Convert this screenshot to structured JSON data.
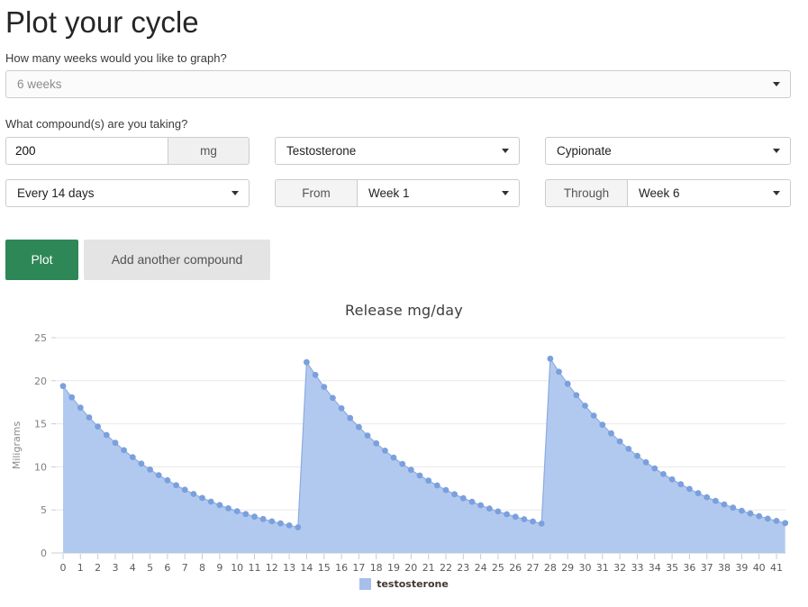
{
  "page": {
    "title": "Plot your cycle"
  },
  "form": {
    "weeks_label": "How many weeks would you like to graph?",
    "weeks_value": "6 weeks",
    "compound_label": "What compound(s) are you taking?",
    "dose_value": "200",
    "dose_unit": "mg",
    "compound_value": "Testosterone",
    "ester_value": "Cypionate",
    "frequency_value": "Every 14 days",
    "from_label": "From",
    "from_value": "Week 1",
    "through_label": "Through",
    "through_value": "Week 6",
    "plot_button": "Plot",
    "add_compound_button": "Add another compound"
  },
  "colors": {
    "plot_button_green": "#2e8756",
    "series_fill_blue": "#abc4ee",
    "series_marker_blue": "#7aa0dd"
  },
  "chart_data": {
    "type": "area",
    "title": "Release mg/day",
    "xlabel": "",
    "ylabel": "Miligrams",
    "legend_label": "testosterone",
    "legend_color": "#a6c0ea",
    "legend_position": "bottom",
    "grid": true,
    "xlim": [
      0,
      41.5
    ],
    "ylim": [
      0,
      25
    ],
    "y_ticks": [
      0,
      5,
      10,
      15,
      20,
      25
    ],
    "x_ticks": [
      0,
      1,
      2,
      3,
      4,
      5,
      6,
      7,
      8,
      9,
      10,
      11,
      12,
      13,
      14,
      15,
      16,
      17,
      18,
      19,
      20,
      21,
      22,
      23,
      24,
      25,
      26,
      27,
      28,
      29,
      30,
      31,
      32,
      33,
      34,
      35,
      36,
      37,
      38,
      39,
      40,
      41
    ],
    "series": [
      {
        "name": "testosterone",
        "fill_color": "#abc4ee",
        "line_color": "#8cabe0",
        "marker_color": "#7aa0dd",
        "x": [
          0,
          0.5,
          1,
          1.5,
          2,
          2.5,
          3,
          3.5,
          4,
          4.5,
          5,
          5.5,
          6,
          6.5,
          7,
          7.5,
          8,
          8.5,
          9,
          9.5,
          10,
          10.5,
          11,
          11.5,
          12,
          12.5,
          13,
          13.5,
          14,
          14.5,
          15,
          15.5,
          16,
          16.5,
          17,
          17.5,
          18,
          18.5,
          19,
          19.5,
          20,
          20.5,
          21,
          21.5,
          22,
          22.5,
          23,
          23.5,
          24,
          24.5,
          25,
          25.5,
          26,
          26.5,
          27,
          27.5,
          28,
          28.5,
          29,
          29.5,
          30,
          30.5,
          31,
          31.5,
          32,
          32.5,
          33,
          33.5,
          34,
          34.5,
          35,
          35.5,
          36,
          36.5,
          37,
          37.5,
          38,
          38.5,
          39,
          39.5,
          40,
          40.5,
          41,
          41.5
        ],
        "y": [
          19.38,
          18.08,
          16.87,
          15.74,
          14.69,
          13.7,
          12.79,
          11.93,
          11.13,
          10.38,
          9.69,
          9.04,
          8.44,
          7.87,
          7.34,
          6.85,
          6.39,
          5.96,
          5.56,
          5.19,
          4.85,
          4.52,
          4.22,
          3.94,
          3.67,
          3.43,
          3.2,
          2.98,
          22.16,
          20.68,
          19.29,
          18.0,
          16.8,
          15.67,
          14.62,
          13.64,
          12.73,
          11.88,
          11.08,
          10.34,
          9.65,
          9.0,
          8.4,
          7.84,
          7.31,
          6.82,
          6.36,
          5.94,
          5.54,
          5.17,
          4.82,
          4.5,
          4.2,
          3.92,
          3.66,
          3.41,
          22.56,
          21.05,
          19.64,
          18.33,
          17.1,
          15.95,
          14.89,
          13.89,
          12.96,
          12.09,
          11.28,
          10.53,
          9.82,
          9.16,
          8.55,
          7.98,
          7.44,
          6.94,
          6.48,
          6.05,
          5.64,
          5.26,
          4.91,
          4.58,
          4.28,
          3.99,
          3.72,
          3.47
        ]
      }
    ]
  }
}
